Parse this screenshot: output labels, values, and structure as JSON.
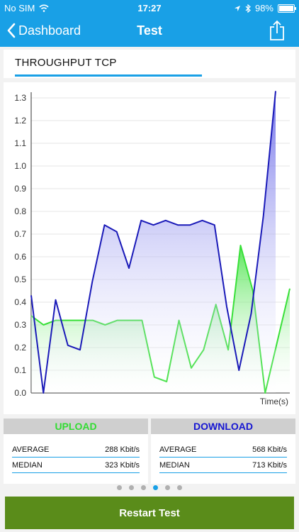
{
  "status": {
    "carrier": "No SIM",
    "time": "17:27",
    "battery": "98%",
    "battery_level": 0.98
  },
  "nav": {
    "back_label": "Dashboard",
    "title": "Test"
  },
  "test": {
    "title": "THROUGHPUT TCP"
  },
  "chart_data": {
    "type": "area",
    "xlabel": "Time(s)",
    "ylabel": "",
    "ylim": [
      0,
      1.3
    ],
    "y_ticks": [
      "0.0",
      "0.1",
      "0.2",
      "0.3",
      "0.4",
      "0.5",
      "0.6",
      "0.7",
      "0.8",
      "0.9",
      "1.0",
      "1.1",
      "1.2",
      "1.3"
    ],
    "grid": true,
    "series": [
      {
        "name": "DOWNLOAD",
        "color": "#1a1ab8",
        "values": [
          0.43,
          0.0,
          0.41,
          0.21,
          0.19,
          0.49,
          0.74,
          0.71,
          0.55,
          0.76,
          0.74,
          0.76,
          0.74,
          0.74,
          0.76,
          0.74,
          0.38,
          0.1,
          0.35,
          0.78,
          1.33
        ]
      },
      {
        "name": "UPLOAD",
        "color": "#38e038",
        "values": [
          0.34,
          0.3,
          0.32,
          0.32,
          0.32,
          0.32,
          0.3,
          0.32,
          0.32,
          0.32,
          0.07,
          0.05,
          0.32,
          0.11,
          0.19,
          0.39,
          0.19,
          0.65,
          0.45,
          0.0,
          0.23,
          0.46
        ]
      }
    ]
  },
  "upload": {
    "title": "UPLOAD",
    "color": "#32dc32",
    "average_label": "AVERAGE",
    "average_value": "288 Kbit/s",
    "median_label": "MEDIAN",
    "median_value": "323 Kbit/s"
  },
  "download": {
    "title": "DOWNLOAD",
    "color": "#1616d2",
    "average_label": "AVERAGE",
    "average_value": "568 Kbit/s",
    "median_label": "MEDIAN",
    "median_value": "713 Kbit/s"
  },
  "pager": {
    "count": 6,
    "active": 3
  },
  "actions": {
    "restart_label": "Restart Test"
  }
}
